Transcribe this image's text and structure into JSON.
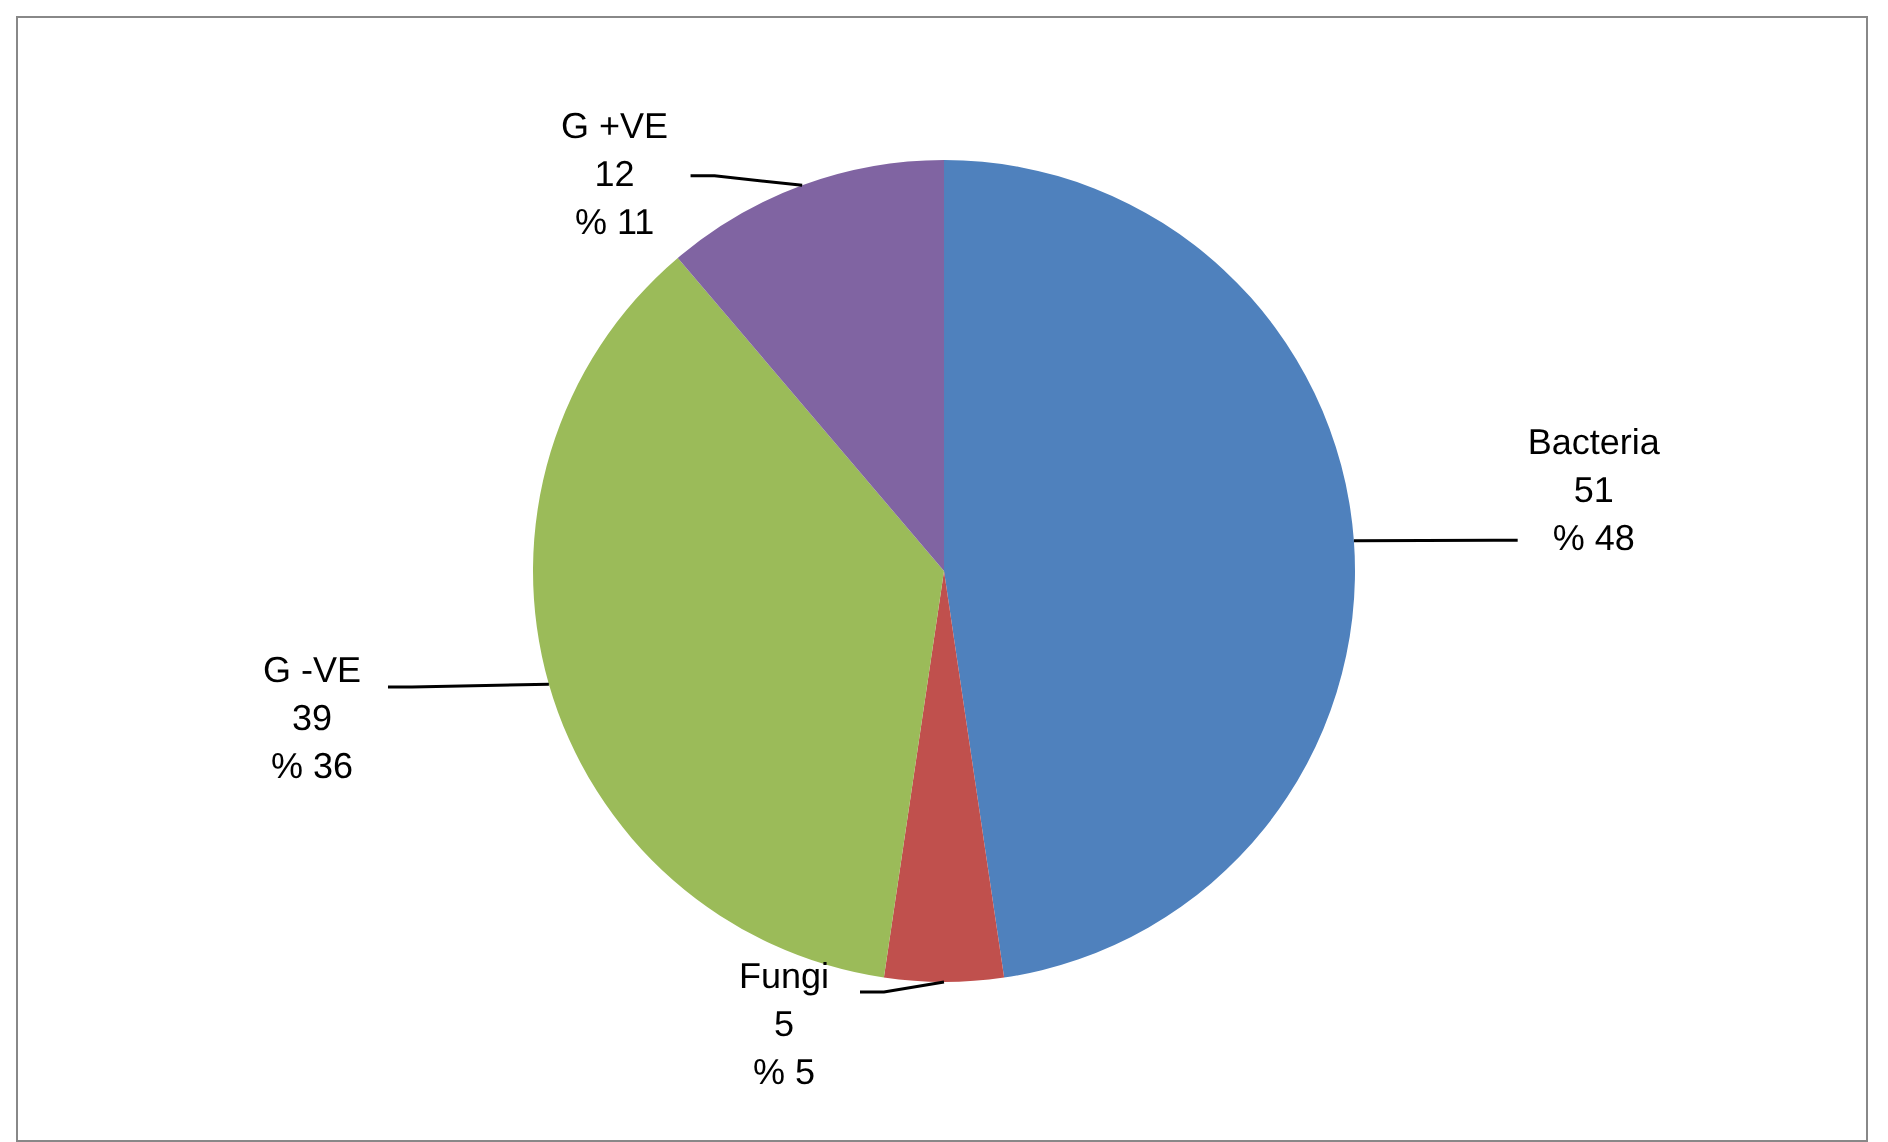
{
  "chart_data": {
    "type": "pie",
    "categories": [
      "Bacteria",
      "Fungi",
      "G -VE",
      "G +VE"
    ],
    "values": [
      51,
      5,
      39,
      12
    ],
    "colors": [
      "#4f81bd",
      "#c0504d",
      "#9bbb59",
      "#8064a2"
    ],
    "value_labels": [
      "51\n% 48",
      "5\n% 5",
      "39\n% 36",
      "12\n% 11"
    ],
    "legend": false
  }
}
